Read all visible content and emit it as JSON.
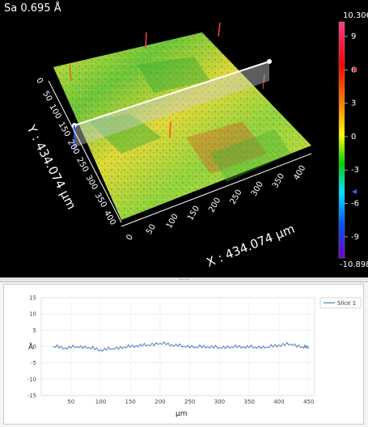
{
  "surface_view": {
    "sa_label": "Sa 0.695 Å",
    "y_axis_title": "Y : 434.074 µm",
    "x_axis_title": "X : 434.074 µm",
    "y_axis_ticks": [
      "0",
      "50",
      "100",
      "150",
      "200",
      "250",
      "300",
      "350",
      "400"
    ],
    "x_axis_ticks": [
      "0",
      "50",
      "100",
      "150",
      "200",
      "250",
      "300",
      "350",
      "400"
    ],
    "colorbar": {
      "max_label": "10.306 Å",
      "min_label": "-10.898 Å",
      "ticks": [
        "9",
        "6",
        "3",
        "0",
        "-3",
        "-6",
        "-9"
      ],
      "upper_marker_value": 5,
      "lower_marker_value": -5,
      "colors": [
        "#ff3a8a",
        "#ff0000",
        "#ff8c00",
        "#ffff00",
        "#00d000",
        "#00e5ff",
        "#0050ff",
        "#7000c8"
      ]
    }
  },
  "profile_chart": {
    "chart_data": {
      "type": "line",
      "xlabel": "µm",
      "ylabel": "Å",
      "xlim": [
        0,
        460
      ],
      "ylim": [
        -15,
        15
      ],
      "x_ticks": [
        "50",
        "100",
        "150",
        "200",
        "250",
        "300",
        "350",
        "400",
        "450"
      ],
      "y_ticks": [
        "15",
        "10",
        "5",
        "0",
        "-5",
        "-10",
        "-15"
      ],
      "grid": true,
      "legend_position": "top-right",
      "series": [
        {
          "name": "Slice 1",
          "color": "#4a7fc0",
          "x": [
            20,
            40,
            60,
            80,
            100,
            120,
            140,
            160,
            180,
            200,
            220,
            240,
            260,
            280,
            300,
            320,
            340,
            360,
            380,
            400,
            420,
            440,
            450
          ],
          "values": [
            0.1,
            -0.4,
            0.0,
            -0.3,
            -1.0,
            -0.6,
            -0.2,
            0.3,
            0.5,
            1.0,
            0.6,
            0.1,
            -0.1,
            0.0,
            -0.3,
            -0.1,
            0.0,
            -0.2,
            -0.2,
            0.5,
            0.8,
            -0.2,
            0.0
          ]
        }
      ]
    }
  }
}
